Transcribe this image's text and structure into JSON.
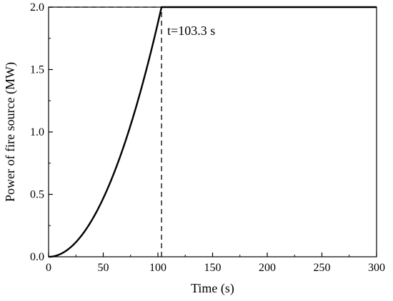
{
  "chart_data": {
    "type": "line",
    "title": "",
    "xlabel": "Time (s)",
    "ylabel": "Power of fire source (MW)",
    "xlim": [
      0,
      300
    ],
    "ylim": [
      0,
      2.0
    ],
    "x_ticks": [
      0,
      50,
      100,
      150,
      200,
      250,
      300
    ],
    "y_ticks": [
      0.0,
      0.5,
      1.0,
      1.5,
      2.0
    ],
    "x_tick_labels": [
      "0",
      "50",
      "100",
      "150",
      "200",
      "250",
      "300"
    ],
    "y_tick_labels": [
      "0.0",
      "0.5",
      "1.0",
      "1.5",
      "2.0"
    ],
    "grid": false,
    "series": [
      {
        "x": [
          0,
          10,
          20,
          30,
          40,
          50,
          60,
          70,
          80,
          90,
          103.3,
          150,
          200,
          250,
          300
        ],
        "y": [
          0,
          0.019,
          0.075,
          0.169,
          0.3,
          0.469,
          0.675,
          0.919,
          1.2,
          1.519,
          2.0,
          2.0,
          2.0,
          2.0,
          2.0
        ],
        "color": "#000000"
      }
    ],
    "annotations": [
      {
        "text": "t=103.3 s",
        "x": 103.3,
        "y": 2.0
      }
    ],
    "reference_lines": [
      {
        "kind": "horizontal",
        "y": 2.0,
        "x_from": 0,
        "x_to": 103.3,
        "style": "dashed"
      },
      {
        "kind": "vertical",
        "x": 103.3,
        "y_from": 0,
        "y_to": 2.0,
        "style": "dashed"
      }
    ]
  }
}
